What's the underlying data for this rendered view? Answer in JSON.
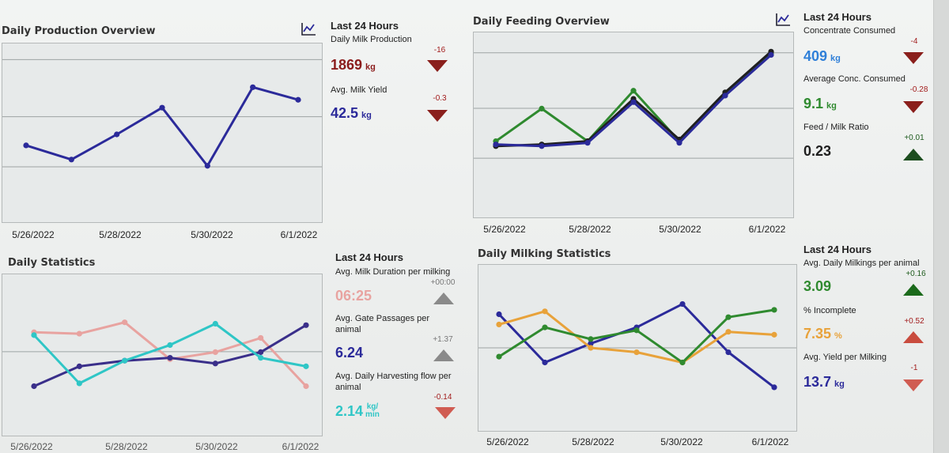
{
  "production": {
    "title": "Daily Production Overview",
    "icon": "line-chart-icon",
    "x_labels": [
      "5/26/2022",
      "5/28/2022",
      "5/30/2022",
      "6/1/2022"
    ],
    "last24": {
      "heading": "Last 24 Hours",
      "milk_label": "Daily Milk Production",
      "milk_value": "1869",
      "milk_unit": "kg",
      "milk_delta": "-16",
      "yield_label": "Avg. Milk Yield",
      "yield_value": "42.5",
      "yield_unit": "kg",
      "yield_delta": "-0.3"
    }
  },
  "feeding": {
    "title": "Daily Feeding Overview",
    "icon": "line-chart-icon",
    "x_labels": [
      "5/26/2022",
      "5/28/2022",
      "5/30/2022",
      "6/1/2022"
    ],
    "last24": {
      "heading": "Last 24 Hours",
      "conc_label": "Concentrate Consumed",
      "conc_value": "409",
      "conc_unit": "kg",
      "conc_delta": "-4",
      "avg_label": "Average Conc. Consumed",
      "avg_value": "9.1",
      "avg_unit": "kg",
      "avg_delta": "-0.28",
      "ratio_label": "Feed / Milk Ratio",
      "ratio_value": "0.23",
      "ratio_delta": "+0.01"
    }
  },
  "statistics": {
    "title": "Daily Statistics",
    "x_labels": [
      "5/26/2022",
      "5/28/2022",
      "5/30/2022",
      "6/1/2022"
    ],
    "last24": {
      "heading": "Last 24 Hours",
      "duration_label": "Avg. Milk Duration per milking",
      "duration_value": "06:25",
      "duration_delta": "+00:00",
      "gate_label": "Avg. Gate Passages per animal",
      "gate_value": "6.24",
      "gate_delta": "+1.37",
      "flow_label": "Avg. Daily Harvesting flow per animal",
      "flow_value": "2.14",
      "flow_unit_top": "kg/",
      "flow_unit_bottom": "min",
      "flow_delta": "-0.14"
    }
  },
  "milking": {
    "title": "Daily Milking Statistics",
    "x_labels": [
      "5/26/2022",
      "5/28/2022",
      "5/30/2022",
      "6/1/2022"
    ],
    "last24": {
      "heading": "Last 24 Hours",
      "milkings_label": "Avg. Daily Milkings per animal",
      "milkings_value": "3.09",
      "milkings_delta": "+0.16",
      "incomplete_label": "% Incomplete",
      "incomplete_value": "7.35",
      "incomplete_unit": "%",
      "incomplete_delta": "+0.52",
      "yield_label": "Avg. Yield per Milking",
      "yield_value": "13.7",
      "yield_unit": "kg",
      "yield_delta": "-1"
    }
  },
  "colors": {
    "milk_red": "#8b1c1c",
    "navy": "#2b2a9a",
    "blue": "#2f7fd8",
    "green": "#2f8a2f",
    "dark": "#1f1f1f",
    "pink": "#e8a3a0",
    "teal": "#2fc6c6",
    "orange": "#e8a23a",
    "purple": "#3a2f8a"
  },
  "chart_data": [
    {
      "type": "line",
      "x": [
        "5/26/2022",
        "5/27/2022",
        "5/28/2022",
        "5/29/2022",
        "5/30/2022",
        "5/31/2022",
        "6/1/2022"
      ],
      "series": [
        {
          "values": [
            0.42,
            0.33,
            0.49,
            0.66,
            0.29,
            0.79,
            0.71
          ],
          "color": "#2b2a9a"
        }
      ]
    },
    {
      "type": "line",
      "x": [
        "5/26/2022",
        "5/27/2022",
        "5/28/2022",
        "5/29/2022",
        "5/30/2022",
        "5/31/2022",
        "6/1/2022"
      ],
      "series": [
        {
          "values": [
            0.4,
            0.6,
            0.4,
            0.71,
            0.4,
            0.69,
            0.94
          ],
          "color": "#2f8a2f"
        },
        {
          "values": [
            0.37,
            0.38,
            0.4,
            0.66,
            0.41,
            0.7,
            0.95
          ],
          "color": "#1f1f1f"
        },
        {
          "values": [
            0.38,
            0.37,
            0.39,
            0.64,
            0.39,
            0.68,
            0.93
          ],
          "color": "#2b2a9a"
        }
      ]
    },
    {
      "type": "line",
      "x": [
        "5/26/2022",
        "5/27/2022",
        "5/28/2022",
        "5/29/2022",
        "5/30/2022",
        "5/31/2022",
        "6/1/2022"
      ],
      "series": [
        {
          "values": [
            0.66,
            0.65,
            0.73,
            0.47,
            0.52,
            0.62,
            0.28
          ],
          "color": "#e8a3a0"
        },
        {
          "values": [
            0.28,
            0.42,
            0.46,
            0.48,
            0.44,
            0.52,
            0.71
          ],
          "color": "#3a2f8a"
        },
        {
          "values": [
            0.64,
            0.3,
            0.46,
            0.57,
            0.72,
            0.48,
            0.42
          ],
          "color": "#2fc6c6"
        }
      ]
    },
    {
      "type": "line",
      "x": [
        "5/26/2022",
        "5/27/2022",
        "5/28/2022",
        "5/29/2022",
        "5/30/2022",
        "5/31/2022",
        "6/1/2022"
      ],
      "series": [
        {
          "values": [
            0.73,
            0.4,
            0.53,
            0.64,
            0.8,
            0.47,
            0.23
          ],
          "color": "#2b2a9a"
        },
        {
          "values": [
            0.66,
            0.75,
            0.5,
            0.47,
            0.4,
            0.61,
            0.59
          ],
          "color": "#e8a23a"
        },
        {
          "values": [
            0.44,
            0.64,
            0.56,
            0.62,
            0.4,
            0.71,
            0.76
          ],
          "color": "#2f8a2f"
        }
      ]
    }
  ]
}
